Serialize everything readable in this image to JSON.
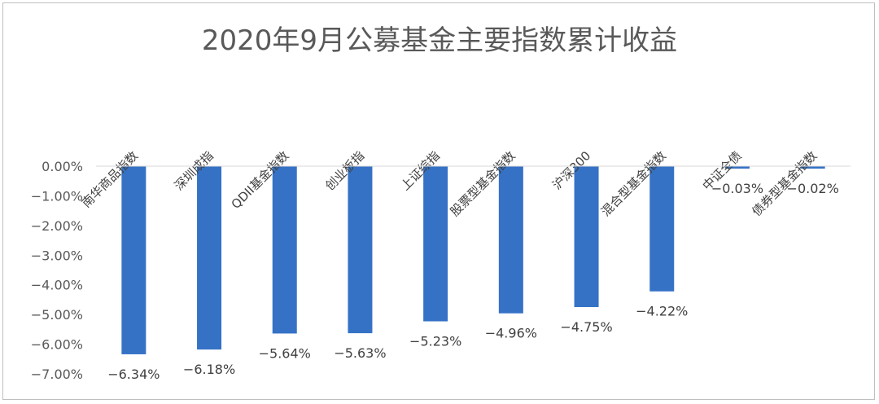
{
  "chart_data": {
    "type": "bar",
    "title": "2020年9月公募基金主要指数累计收益",
    "categories": [
      "南华商品指数",
      "深圳成指",
      "QDII基金指数",
      "创业板指",
      "上证综指",
      "股票型基金指数",
      "沪深300",
      "混合型基金指数",
      "中证全债",
      "债券型基金指数"
    ],
    "values": [
      -6.34,
      -6.18,
      -5.64,
      -5.63,
      -5.23,
      -4.96,
      -4.75,
      -4.22,
      -0.03,
      -0.02
    ],
    "data_labels": [
      "−6.34%",
      "−6.18%",
      "−5.64%",
      "−5.63%",
      "−5.23%",
      "−4.96%",
      "−4.75%",
      "−4.22%",
      "−0.03%",
      "−0.02%"
    ],
    "yticks": [
      0,
      -1,
      -2,
      -3,
      -4,
      -5,
      -6,
      -7
    ],
    "ytick_labels": [
      "0.00%",
      "−1.00%",
      "−2.00%",
      "−3.00%",
      "−4.00%",
      "−5.00%",
      "−6.00%",
      "−7.00%"
    ],
    "ylim": [
      -7,
      0
    ],
    "xlabel": "",
    "ylabel": "",
    "grid": false,
    "legend": "none",
    "bar_color": "#3572C6"
  }
}
